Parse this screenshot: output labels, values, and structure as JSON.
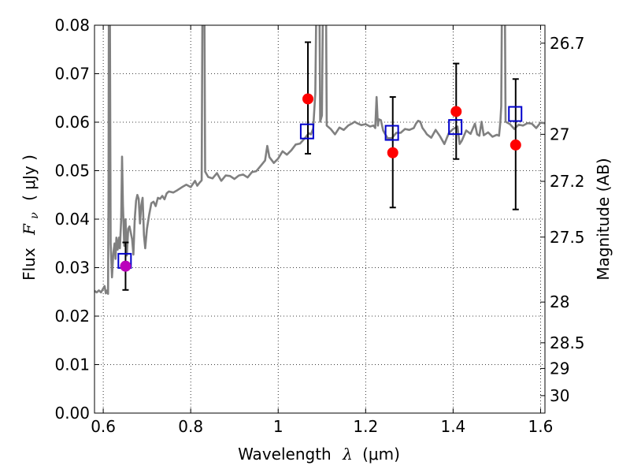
{
  "chart_data": {
    "type": "scatter",
    "xlabel": "Wavelength",
    "xlabel_symbol": "λ",
    "xlabel_unit": "(μm)",
    "ylabel": "Flux",
    "ylabel_symbol": "F",
    "ylabel_subscript": "ν",
    "ylabel_unit": "( μJy )",
    "ylabel_right": "Magnitude (AB)",
    "xlim": [
      0.58,
      1.61
    ],
    "ylim": [
      0.0,
      0.08
    ],
    "xticks": [
      0.6,
      0.8,
      1.0,
      1.2,
      1.4,
      1.6
    ],
    "xtick_labels": [
      "0.6",
      "0.8",
      "1",
      "1.2",
      "1.4",
      "1.6"
    ],
    "yticks": [
      0.0,
      0.01,
      0.02,
      0.03,
      0.04,
      0.05,
      0.06,
      0.07,
      0.08
    ],
    "ytick_labels": [
      "0.00",
      "0.01",
      "0.02",
      "0.03",
      "0.04",
      "0.05",
      "0.06",
      "0.07",
      "0.08"
    ],
    "right_axis_ticks": [
      {
        "flux": 0.0763,
        "label": "26.7"
      },
      {
        "flux": 0.0575,
        "label": "27"
      },
      {
        "flux": 0.0478,
        "label": "27.2"
      },
      {
        "flux": 0.0363,
        "label": "27.5"
      },
      {
        "flux": 0.0229,
        "label": "28"
      },
      {
        "flux": 0.0145,
        "label": "28.5"
      },
      {
        "flux": 0.0092,
        "label": "29"
      },
      {
        "flux": 0.0036,
        "label": "30"
      }
    ],
    "grid": true,
    "grid_style": "dotted",
    "colors": {
      "spectrum": "#808080",
      "observed": "#ff0000",
      "observed_first": "#bb00bb",
      "model_box": "#0000cc",
      "errorbar": "#000000"
    },
    "model_points": [
      {
        "x": 0.649,
        "y": 0.0314
      },
      {
        "x": 1.066,
        "y": 0.0581
      },
      {
        "x": 1.26,
        "y": 0.0578
      },
      {
        "x": 1.405,
        "y": 0.059
      },
      {
        "x": 1.542,
        "y": 0.0617
      }
    ],
    "observed_points": [
      {
        "x": 0.651,
        "y": 0.0303,
        "yerr_low": 0.0049,
        "yerr_high": 0.0049
      },
      {
        "x": 1.068,
        "y": 0.0648,
        "yerr_low": 0.0113,
        "yerr_high": 0.0117
      },
      {
        "x": 1.262,
        "y": 0.0537,
        "yerr_low": 0.0113,
        "yerr_high": 0.0115
      },
      {
        "x": 1.407,
        "y": 0.0622,
        "yerr_low": 0.0098,
        "yerr_high": 0.0099
      },
      {
        "x": 1.543,
        "y": 0.0553,
        "yerr_low": 0.0133,
        "yerr_high": 0.0136
      }
    ],
    "spectrum": [
      [
        0.58,
        0.0252
      ],
      [
        0.585,
        0.0249
      ],
      [
        0.59,
        0.0253
      ],
      [
        0.595,
        0.0249
      ],
      [
        0.6,
        0.0257
      ],
      [
        0.603,
        0.0262
      ],
      [
        0.606,
        0.0247
      ],
      [
        0.609,
        0.0253
      ],
      [
        0.611,
        0.0246
      ],
      [
        0.612,
        0.045
      ],
      [
        0.613,
        0.09
      ],
      [
        0.615,
        0.09
      ],
      [
        0.617,
        0.035
      ],
      [
        0.62,
        0.028
      ],
      [
        0.623,
        0.033
      ],
      [
        0.626,
        0.035
      ],
      [
        0.628,
        0.0318
      ],
      [
        0.63,
        0.0362
      ],
      [
        0.633,
        0.0337
      ],
      [
        0.636,
        0.0362
      ],
      [
        0.638,
        0.034
      ],
      [
        0.641,
        0.04
      ],
      [
        0.643,
        0.0529
      ],
      [
        0.645,
        0.043
      ],
      [
        0.648,
        0.0345
      ],
      [
        0.651,
        0.04
      ],
      [
        0.654,
        0.0325
      ],
      [
        0.657,
        0.038
      ],
      [
        0.66,
        0.0385
      ],
      [
        0.663,
        0.0372
      ],
      [
        0.666,
        0.0358
      ],
      [
        0.669,
        0.0327
      ],
      [
        0.672,
        0.04
      ],
      [
        0.675,
        0.0438
      ],
      [
        0.678,
        0.045
      ],
      [
        0.681,
        0.0442
      ],
      [
        0.684,
        0.0391
      ],
      [
        0.687,
        0.0429
      ],
      [
        0.69,
        0.0444
      ],
      [
        0.693,
        0.0367
      ],
      [
        0.696,
        0.034
      ],
      [
        0.7,
        0.038
      ],
      [
        0.705,
        0.0409
      ],
      [
        0.71,
        0.0433
      ],
      [
        0.715,
        0.0436
      ],
      [
        0.72,
        0.0427
      ],
      [
        0.725,
        0.0444
      ],
      [
        0.73,
        0.0442
      ],
      [
        0.735,
        0.0448
      ],
      [
        0.74,
        0.0441
      ],
      [
        0.745,
        0.0453
      ],
      [
        0.75,
        0.0457
      ],
      [
        0.76,
        0.0455
      ],
      [
        0.77,
        0.046
      ],
      [
        0.78,
        0.0466
      ],
      [
        0.79,
        0.0471
      ],
      [
        0.8,
        0.0466
      ],
      [
        0.81,
        0.0479
      ],
      [
        0.815,
        0.0469
      ],
      [
        0.82,
        0.0475
      ],
      [
        0.825,
        0.048
      ],
      [
        0.827,
        0.09
      ],
      [
        0.831,
        0.09
      ],
      [
        0.833,
        0.0498
      ],
      [
        0.84,
        0.0487
      ],
      [
        0.85,
        0.0484
      ],
      [
        0.86,
        0.0495
      ],
      [
        0.87,
        0.0479
      ],
      [
        0.88,
        0.049
      ],
      [
        0.89,
        0.0489
      ],
      [
        0.9,
        0.0483
      ],
      [
        0.91,
        0.049
      ],
      [
        0.92,
        0.0492
      ],
      [
        0.93,
        0.0486
      ],
      [
        0.94,
        0.0497
      ],
      [
        0.95,
        0.0499
      ],
      [
        0.96,
        0.051
      ],
      [
        0.97,
        0.0521
      ],
      [
        0.975,
        0.0551
      ],
      [
        0.98,
        0.0528
      ],
      [
        0.99,
        0.0516
      ],
      [
        1.0,
        0.0525
      ],
      [
        1.01,
        0.054
      ],
      [
        1.02,
        0.0533
      ],
      [
        1.03,
        0.0542
      ],
      [
        1.04,
        0.0554
      ],
      [
        1.05,
        0.0556
      ],
      [
        1.06,
        0.0566
      ],
      [
        1.07,
        0.0577
      ],
      [
        1.075,
        0.0575
      ],
      [
        1.08,
        0.0587
      ],
      [
        1.085,
        0.066
      ],
      [
        1.088,
        0.09
      ],
      [
        1.094,
        0.09
      ],
      [
        1.096,
        0.0601
      ],
      [
        1.1,
        0.0614
      ],
      [
        1.103,
        0.09
      ],
      [
        1.109,
        0.09
      ],
      [
        1.111,
        0.0593
      ],
      [
        1.12,
        0.0586
      ],
      [
        1.13,
        0.0575
      ],
      [
        1.14,
        0.0589
      ],
      [
        1.15,
        0.0584
      ],
      [
        1.16,
        0.0593
      ],
      [
        1.17,
        0.0598
      ],
      [
        1.175,
        0.0601
      ],
      [
        1.18,
        0.0598
      ],
      [
        1.19,
        0.0594
      ],
      [
        1.2,
        0.0596
      ],
      [
        1.21,
        0.0591
      ],
      [
        1.218,
        0.0593
      ],
      [
        1.222,
        0.0588
      ],
      [
        1.225,
        0.0652
      ],
      [
        1.228,
        0.0593
      ],
      [
        1.23,
        0.0606
      ],
      [
        1.235,
        0.0604
      ],
      [
        1.24,
        0.0583
      ],
      [
        1.25,
        0.0567
      ],
      [
        1.26,
        0.0567
      ],
      [
        1.27,
        0.0578
      ],
      [
        1.28,
        0.0578
      ],
      [
        1.29,
        0.0586
      ],
      [
        1.3,
        0.0584
      ],
      [
        1.31,
        0.0588
      ],
      [
        1.315,
        0.0597
      ],
      [
        1.32,
        0.0603
      ],
      [
        1.325,
        0.0601
      ],
      [
        1.33,
        0.0588
      ],
      [
        1.335,
        0.0582
      ],
      [
        1.34,
        0.0575
      ],
      [
        1.35,
        0.0568
      ],
      [
        1.36,
        0.0584
      ],
      [
        1.37,
        0.0571
      ],
      [
        1.38,
        0.0555
      ],
      [
        1.39,
        0.0577
      ],
      [
        1.4,
        0.0586
      ],
      [
        1.41,
        0.0591
      ],
      [
        1.415,
        0.0555
      ],
      [
        1.42,
        0.0562
      ],
      [
        1.43,
        0.0583
      ],
      [
        1.44,
        0.0576
      ],
      [
        1.45,
        0.0597
      ],
      [
        1.455,
        0.0575
      ],
      [
        1.46,
        0.0572
      ],
      [
        1.465,
        0.0601
      ],
      [
        1.47,
        0.0573
      ],
      [
        1.48,
        0.0579
      ],
      [
        1.49,
        0.057
      ],
      [
        1.5,
        0.0574
      ],
      [
        1.505,
        0.0572
      ],
      [
        1.508,
        0.0601
      ],
      [
        1.51,
        0.0633
      ],
      [
        1.512,
        0.09
      ],
      [
        1.518,
        0.09
      ],
      [
        1.52,
        0.0601
      ],
      [
        1.53,
        0.0596
      ],
      [
        1.54,
        0.0586
      ],
      [
        1.55,
        0.0595
      ],
      [
        1.56,
        0.0593
      ],
      [
        1.57,
        0.0598
      ],
      [
        1.58,
        0.0597
      ],
      [
        1.59,
        0.0588
      ],
      [
        1.6,
        0.0599
      ],
      [
        1.61,
        0.0598
      ]
    ]
  }
}
